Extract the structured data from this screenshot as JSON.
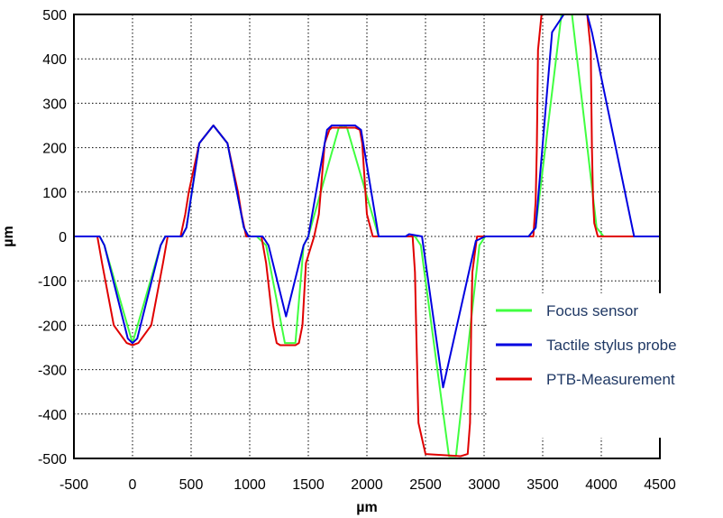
{
  "chart_data": {
    "type": "line",
    "xlabel": "µm",
    "ylabel": "µm",
    "xlim": [
      -500,
      4500
    ],
    "ylim": [
      -500,
      500
    ],
    "xticks": [
      -500,
      0,
      500,
      1000,
      1500,
      2000,
      2500,
      3000,
      3500,
      4000,
      4500
    ],
    "yticks": [
      500,
      400,
      300,
      200,
      100,
      0,
      -100,
      -200,
      -300,
      -400,
      -500
    ],
    "grid": true,
    "legend_position": "right",
    "series": [
      {
        "name": "Focus sensor",
        "color": "#40ff40",
        "x": [
          -500,
          -280,
          -240,
          0,
          240,
          280,
          420,
          460,
          570,
          690,
          810,
          950,
          990,
          1060,
          1140,
          1300,
          1390,
          1460,
          1500,
          1760,
          1800,
          1830,
          2100,
          2140,
          2410,
          2460,
          2700,
          2760,
          2960,
          3010,
          3380,
          3440,
          3660,
          3750,
          3960,
          4020,
          4190,
          4500
        ],
        "y": [
          0,
          0,
          -20,
          -240,
          -20,
          0,
          0,
          20,
          210,
          250,
          210,
          20,
          0,
          0,
          -20,
          -240,
          -240,
          -20,
          0,
          245,
          250,
          245,
          0,
          0,
          0,
          -20,
          -495,
          -495,
          -20,
          0,
          0,
          20,
          500,
          500,
          20,
          0,
          0,
          0
        ]
      },
      {
        "name": "Tactile stylus probe",
        "color": "#0000e0",
        "x": [
          -500,
          -280,
          -240,
          -40,
          0,
          40,
          240,
          280,
          420,
          460,
          570,
          690,
          810,
          950,
          990,
          1110,
          1160,
          1310,
          1460,
          1500,
          1660,
          1700,
          1760,
          1900,
          1950,
          2100,
          2140,
          2330,
          2360,
          2470,
          2650,
          2930,
          3010,
          3380,
          3440,
          3580,
          3680,
          3880,
          3920,
          4280,
          4500
        ],
        "y": [
          0,
          0,
          -20,
          -230,
          -240,
          -230,
          -20,
          0,
          0,
          20,
          210,
          250,
          210,
          20,
          0,
          0,
          -20,
          -180,
          -20,
          0,
          240,
          250,
          250,
          250,
          240,
          0,
          0,
          0,
          5,
          0,
          -340,
          -10,
          0,
          0,
          20,
          460,
          500,
          500,
          460,
          0,
          0
        ]
      },
      {
        "name": "PTB-Measurement",
        "color": "#e00000",
        "x": [
          -500,
          -300,
          -260,
          -160,
          -50,
          0,
          50,
          160,
          260,
          300,
          410,
          450,
          480,
          570,
          690,
          810,
          900,
          930,
          970,
          1100,
          1140,
          1200,
          1230,
          1260,
          1300,
          1390,
          1420,
          1450,
          1480,
          1550,
          1590,
          1640,
          1680,
          1700,
          1900,
          1940,
          1960,
          2000,
          2050,
          2150,
          2390,
          2410,
          2420,
          2440,
          2500,
          2800,
          2860,
          2880,
          2890,
          2900,
          2940,
          3300,
          3420,
          3440,
          3450,
          3460,
          3490,
          3880,
          3910,
          3920,
          3930,
          3940,
          3970,
          4130,
          4500
        ],
        "y": [
          0,
          0,
          -60,
          -200,
          -240,
          -245,
          -240,
          -200,
          -60,
          0,
          0,
          50,
          100,
          210,
          250,
          210,
          100,
          50,
          0,
          0,
          -60,
          -200,
          -240,
          -245,
          -245,
          -245,
          -240,
          -200,
          -60,
          0,
          50,
          210,
          240,
          245,
          245,
          240,
          210,
          50,
          0,
          0,
          0,
          -80,
          -200,
          -420,
          -490,
          -495,
          -490,
          -420,
          -200,
          -80,
          0,
          0,
          0,
          80,
          200,
          420,
          500,
          500,
          420,
          200,
          80,
          30,
          0,
          0,
          0
        ]
      }
    ]
  }
}
